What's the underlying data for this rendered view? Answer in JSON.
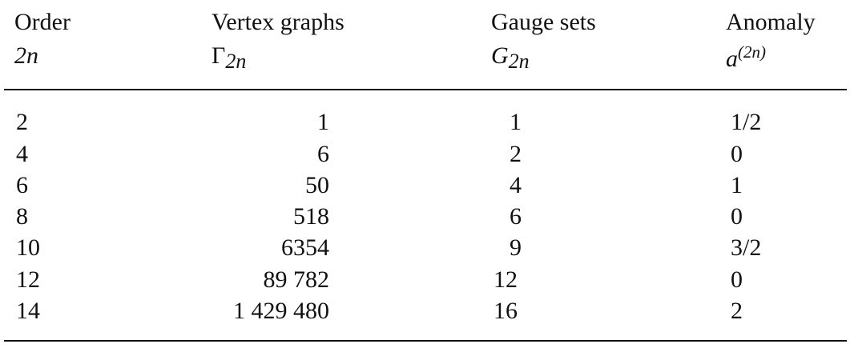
{
  "table": {
    "headers": {
      "order": {
        "line1": "Order",
        "line2": "2n"
      },
      "vertex": {
        "line1": "Vertex graphs",
        "line2_base": "Γ",
        "line2_sub": "2n"
      },
      "gauge": {
        "line1": "Gauge sets",
        "line2_base": "G",
        "line2_sub": "2n"
      },
      "anomaly": {
        "line1": "Anomaly",
        "line2_base": "a",
        "line2_sup": "(2n)"
      }
    },
    "rows": [
      {
        "order": "2",
        "vertex": "1",
        "gauge": "1",
        "anomaly": "1/2"
      },
      {
        "order": "4",
        "vertex": "6",
        "gauge": "2",
        "anomaly": "0"
      },
      {
        "order": "6",
        "vertex": "50",
        "gauge": "4",
        "anomaly": "1"
      },
      {
        "order": "8",
        "vertex": "518",
        "gauge": "6",
        "anomaly": "0"
      },
      {
        "order": "10",
        "vertex": "6354",
        "gauge": "9",
        "anomaly": "3/2"
      },
      {
        "order": "12",
        "vertex": "89 782",
        "gauge": "12",
        "anomaly": "0"
      },
      {
        "order": "14",
        "vertex": "1 429 480",
        "gauge": "16",
        "anomaly": "2"
      }
    ]
  }
}
